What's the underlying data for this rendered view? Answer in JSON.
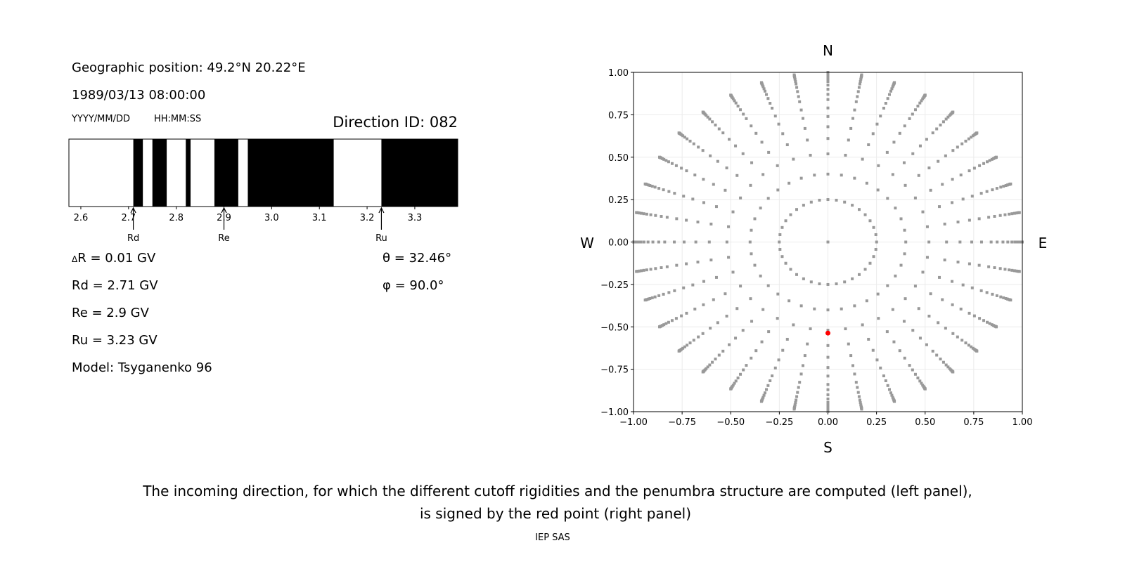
{
  "info": {
    "geo_position": "Geographic position: 49.2°N 20.22°E",
    "datetime": "1989/03/13 08:00:00",
    "date_format": "YYYY/MM/DD",
    "time_format": "HH:MM:SS",
    "direction_id": "Direction ID: 082",
    "delta_r": "R = 0.01 GV",
    "delta_symbol": "Δ",
    "rd": "Rd = 2.71 GV",
    "re": "Re = 2.9 GV",
    "ru": "Ru = 3.23 GV",
    "model": "Model: Tsyganenko 96",
    "theta": "θ = 32.46°",
    "phi": "φ = 90.0°"
  },
  "caption": {
    "line1": "The incoming direction, for which the different cutoff rigidities and the penumbra structure are computed (left panel),",
    "line2": "is signed by the red point (right panel)",
    "credit": "IEP SAS"
  },
  "chart_data": [
    {
      "type": "bar",
      "description_kind": "penumbra",
      "xlim": [
        2.575,
        3.39
      ],
      "xticks": [
        2.6,
        2.7,
        2.8,
        2.9,
        3.0,
        3.1,
        3.2,
        3.3
      ],
      "tick_labels": [
        "2.6",
        "2.7",
        "2.8",
        "2.9",
        "3.0",
        "3.1",
        "3.2",
        "3.3"
      ],
      "black_intervals": [
        [
          2.71,
          2.73
        ],
        [
          2.75,
          2.78
        ],
        [
          2.82,
          2.83
        ],
        [
          2.88,
          2.93
        ],
        [
          2.95,
          3.13
        ],
        [
          3.23,
          3.39
        ]
      ],
      "colors": {
        "band": "#000000",
        "gap": "#ffffff"
      },
      "annotations": [
        {
          "label": "Rd",
          "x": 2.71
        },
        {
          "label": "Re",
          "x": 2.9
        },
        {
          "label": "Ru",
          "x": 3.23
        }
      ]
    },
    {
      "type": "scatter",
      "xlim": [
        -1.0,
        1.0
      ],
      "ylim": [
        -1.0,
        1.0
      ],
      "xticks": [
        "−1.00",
        "−0.75",
        "−0.50",
        "−0.25",
        "0.00",
        "0.25",
        "0.50",
        "0.75",
        "1.00"
      ],
      "yticks": [
        "−1.00",
        "−0.75",
        "−0.50",
        "−0.25",
        "0.00",
        "0.25",
        "0.50",
        "0.75",
        "1.00"
      ],
      "grid": true,
      "compass": {
        "top": "N",
        "bottom": "S",
        "left": "W",
        "right": "E"
      },
      "direction_grid": {
        "zenith_angles_deg": [
          0,
          14.5,
          23.6,
          31.3,
          37.6,
          42.8,
          47.7,
          52.2,
          57.1,
          60.5,
          64.2,
          67.7,
          71.1,
          74,
          77,
          79.5,
          82,
          84,
          86,
          88,
          90
        ],
        "azimuth_step_deg": 10,
        "color": "#999999"
      },
      "selected_point": {
        "x": 0.0,
        "y": -0.537,
        "theta_deg": 32.46,
        "phi_deg": 90.0,
        "color": "#ff0000"
      }
    }
  ]
}
